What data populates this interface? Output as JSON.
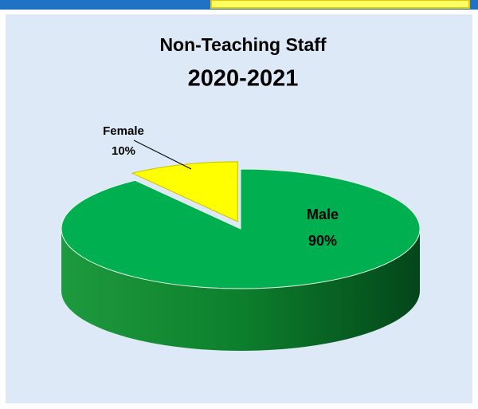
{
  "chart_data": {
    "type": "pie",
    "title": "Non-Teaching Staff",
    "subtitle": "2020-2021",
    "categories": [
      "Female",
      "Male"
    ],
    "values": [
      10,
      90
    ],
    "value_labels": [
      "10%",
      "90%"
    ],
    "colors": [
      "#ffff00",
      "#00b050"
    ]
  }
}
